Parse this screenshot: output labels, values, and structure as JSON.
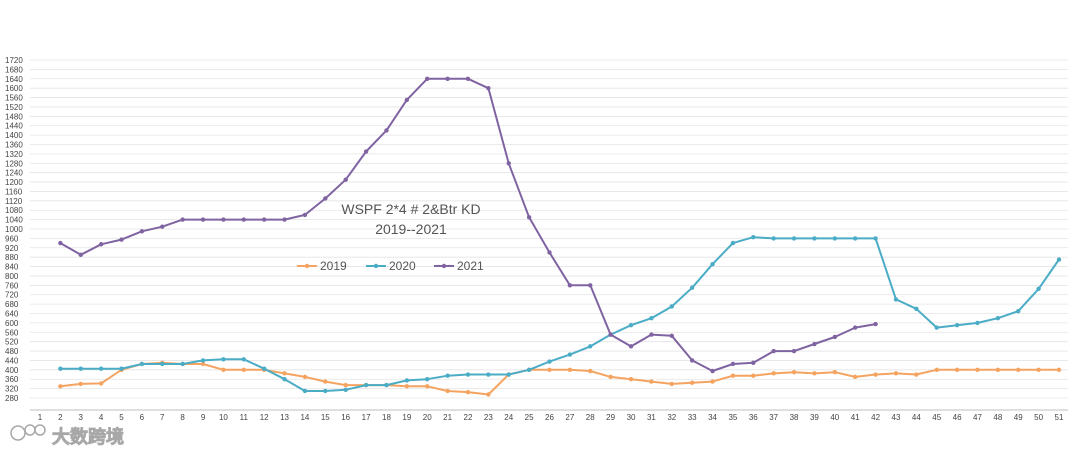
{
  "watermark": {
    "text": "大数跨境"
  },
  "chart_data": {
    "type": "line",
    "title": "WSPF 2*4 # 2&Btr KD",
    "subtitle": "2019--2021",
    "xlabel": "",
    "ylabel": "",
    "categories": [
      1,
      2,
      3,
      4,
      5,
      6,
      7,
      8,
      9,
      10,
      11,
      12,
      13,
      14,
      15,
      16,
      17,
      18,
      19,
      20,
      21,
      22,
      23,
      24,
      25,
      26,
      27,
      28,
      29,
      30,
      31,
      32,
      33,
      34,
      35,
      36,
      37,
      38,
      39,
      40,
      41,
      42,
      43,
      44,
      45,
      46,
      47,
      48,
      49,
      50,
      51
    ],
    "ylim": [
      280,
      1720
    ],
    "ytick_step": 40,
    "grid": true,
    "legend_position": "center-left",
    "series": [
      {
        "name": "2019",
        "color": "#F4A460",
        "x": [
          2,
          3,
          4,
          5,
          6,
          7,
          8,
          9,
          10,
          11,
          12,
          13,
          14,
          15,
          16,
          17,
          18,
          19,
          20,
          21,
          22,
          23,
          24,
          25,
          26,
          27,
          28,
          29,
          30,
          31,
          32,
          33,
          34,
          35,
          36,
          37,
          38,
          39,
          40,
          41,
          42,
          43,
          44,
          45,
          46,
          47,
          48,
          49,
          50,
          51
        ],
        "values": [
          330,
          340,
          342,
          400,
          425,
          430,
          425,
          425,
          400,
          400,
          400,
          385,
          370,
          350,
          335,
          335,
          335,
          330,
          330,
          310,
          305,
          295,
          380,
          400,
          400,
          400,
          395,
          370,
          360,
          350,
          340,
          345,
          350,
          375,
          375,
          385,
          390,
          385,
          390,
          370,
          380,
          385,
          380,
          400,
          400,
          400,
          400,
          400,
          400,
          400
        ]
      },
      {
        "name": "2020",
        "color": "#4BACC6",
        "x": [
          2,
          3,
          4,
          5,
          6,
          7,
          8,
          9,
          10,
          11,
          12,
          13,
          14,
          15,
          16,
          17,
          18,
          19,
          20,
          21,
          22,
          23,
          24,
          25,
          26,
          27,
          28,
          29,
          30,
          31,
          32,
          33,
          34,
          35,
          36,
          37,
          38,
          39,
          40,
          41,
          42,
          43,
          44,
          45,
          46,
          47,
          48,
          49,
          50,
          51
        ],
        "values": [
          405,
          405,
          405,
          405,
          425,
          425,
          425,
          440,
          445,
          445,
          405,
          360,
          310,
          310,
          315,
          335,
          335,
          355,
          360,
          375,
          380,
          380,
          380,
          400,
          435,
          465,
          500,
          550,
          590,
          620,
          670,
          750,
          850,
          940,
          965,
          960,
          960,
          960,
          960,
          960,
          960,
          700,
          660,
          580,
          590,
          600,
          620,
          650,
          745,
          870
        ]
      },
      {
        "name": "2021",
        "color": "#8064A2",
        "x": [
          2,
          3,
          4,
          5,
          6,
          7,
          8,
          9,
          10,
          11,
          12,
          13,
          14,
          15,
          16,
          17,
          18,
          19,
          20,
          21,
          22,
          23,
          24,
          25,
          26,
          27,
          28,
          29,
          30,
          31,
          32,
          33,
          34,
          35,
          36,
          37,
          38,
          39,
          40,
          41,
          42
        ],
        "values": [
          940,
          890,
          935,
          955,
          990,
          1010,
          1040,
          1040,
          1040,
          1040,
          1040,
          1040,
          1060,
          1130,
          1210,
          1330,
          1420,
          1550,
          1640,
          1640,
          1640,
          1600,
          1280,
          1050,
          900,
          760,
          760,
          550,
          500,
          550,
          545,
          440,
          395,
          425,
          430,
          480,
          480,
          510,
          540,
          580,
          595
        ]
      }
    ]
  }
}
